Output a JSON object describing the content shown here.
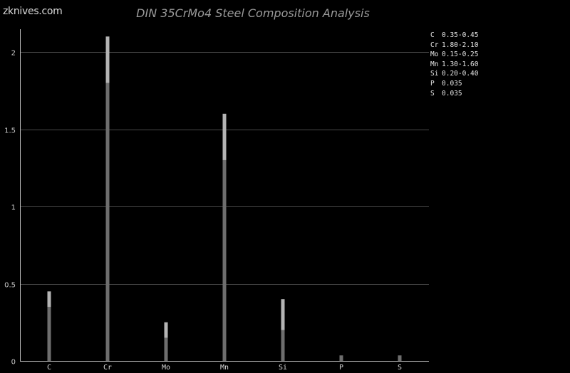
{
  "brand": {
    "logo_text": "zknives.com"
  },
  "chart_data": {
    "type": "bar",
    "title": "DIN 35CrMo4 Steel Composition Analysis",
    "categories": [
      "C",
      "Cr",
      "Mo",
      "Mn",
      "Si",
      "P",
      "S"
    ],
    "series": [
      {
        "values": [
          0.35,
          1.8,
          0.15,
          1.3,
          0.2,
          0.035,
          0.035
        ]
      },
      {
        "values": [
          0.45,
          2.1,
          0.25,
          1.6,
          0.4,
          0.035,
          0.035
        ]
      }
    ],
    "ylim": [
      0,
      2.1
    ],
    "yticks": [
      {
        "value": 0,
        "label": "0"
      },
      {
        "value": 0.5,
        "label": "0.5"
      },
      {
        "value": 1,
        "label": "1"
      },
      {
        "value": 1.5,
        "label": "1.5"
      },
      {
        "value": 2,
        "label": "2"
      }
    ],
    "grid": true,
    "legend": [
      {
        "symbol": "C",
        "range": "0.35-0.45"
      },
      {
        "symbol": "Cr",
        "range": "1.80-2.10"
      },
      {
        "symbol": "Mo",
        "range": "0.15-0.25"
      },
      {
        "symbol": "Mn",
        "range": "1.30-1.60"
      },
      {
        "symbol": "Si",
        "range": "0.20-0.40"
      },
      {
        "symbol": "P",
        "range": "0.035"
      },
      {
        "symbol": "S",
        "range": "0.035"
      }
    ],
    "legend_position": "top-right",
    "colors": {
      "min_bar": "#6e6e6e",
      "max_bar": "#b4b4b4",
      "background": "#000000"
    }
  }
}
